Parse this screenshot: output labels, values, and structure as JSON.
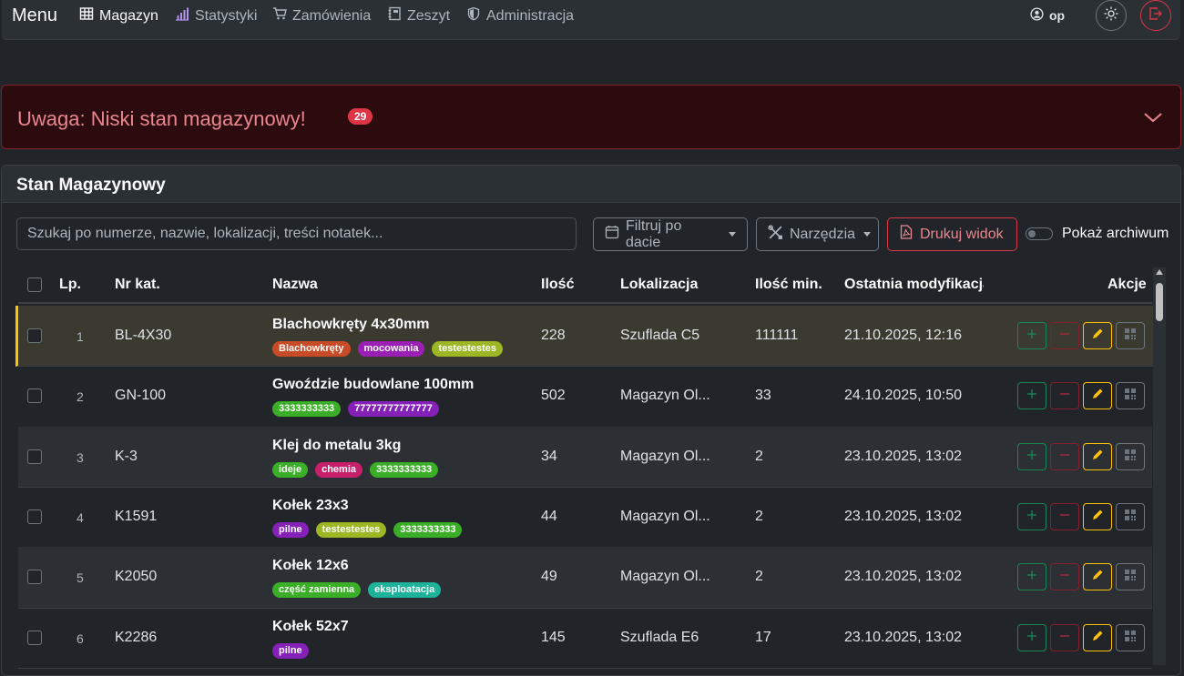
{
  "nav": {
    "brand": "Menu",
    "items": [
      {
        "label": "Magazyn",
        "icon": "table-icon"
      },
      {
        "label": "Statystyki",
        "icon": "bar-chart-icon"
      },
      {
        "label": "Zamówienia",
        "icon": "cart-icon"
      },
      {
        "label": "Zeszyt",
        "icon": "notebook-icon"
      },
      {
        "label": "Administracja",
        "icon": "shield-icon"
      }
    ],
    "user": "op"
  },
  "alert": {
    "title": "Uwaga: Niski stan magazynowy!",
    "badge": "29"
  },
  "card": {
    "title": "Stan Magazynowy"
  },
  "toolbar": {
    "search_placeholder": "Szukaj po numerze, nazwie, lokalizacji, treści notatek...",
    "filter_label": "Filtruj po dacie",
    "tools_label": "Narzędzia",
    "print_label": "Drukuj widok",
    "archive_label": "Pokaż archiwum"
  },
  "table": {
    "headers": {
      "lp": "Lp.",
      "nr": "Nr kat.",
      "name": "Nazwa",
      "qty": "Ilość",
      "loc": "Lokalizacja",
      "min": "Ilość min.",
      "mod": "Ostatnia modyfikacja",
      "actions": "Akcje"
    },
    "rows": [
      {
        "lp": "1",
        "nr": "BL-4X30",
        "name": "Blachowkręty 4x30mm",
        "qty": "228",
        "loc": "Szuflada C5",
        "min": "111111",
        "mod": "21.10.2025, 12:16",
        "tags": [
          {
            "t": "Blachowkręty",
            "c": "#c64b26"
          },
          {
            "t": "mocowania",
            "c": "#9b1fb5"
          },
          {
            "t": "testestestes",
            "c": "#9cb624"
          }
        ]
      },
      {
        "lp": "2",
        "nr": "GN-100",
        "name": "Gwoździe budowlane 100mm",
        "qty": "502",
        "loc": "Magazyn Ol...",
        "min": "33",
        "mod": "24.10.2025, 10:50",
        "tags": [
          {
            "t": "3333333333",
            "c": "#3bae27"
          },
          {
            "t": "77777777777777",
            "c": "#8520b8"
          }
        ]
      },
      {
        "lp": "3",
        "nr": "K-3",
        "name": "Klej do metalu 3kg",
        "qty": "34",
        "loc": "Magazyn Ol...",
        "min": "2",
        "mod": "23.10.2025, 13:02",
        "tags": [
          {
            "t": "ideje",
            "c": "#3bae27"
          },
          {
            "t": "chemia",
            "c": "#c81f6b"
          },
          {
            "t": "3333333333",
            "c": "#3bae27"
          }
        ]
      },
      {
        "lp": "4",
        "nr": "K1591",
        "name": "Kołek 23x3",
        "qty": "44",
        "loc": "Magazyn Ol...",
        "min": "2",
        "mod": "23.10.2025, 13:02",
        "tags": [
          {
            "t": "pilne",
            "c": "#8520b8"
          },
          {
            "t": "testestestes",
            "c": "#9cb624"
          },
          {
            "t": "3333333333",
            "c": "#3bae27"
          }
        ]
      },
      {
        "lp": "5",
        "nr": "K2050",
        "name": "Kołek 12x6",
        "qty": "49",
        "loc": "Magazyn Ol...",
        "min": "2",
        "mod": "23.10.2025, 13:02",
        "tags": [
          {
            "t": "część zamienna",
            "c": "#3bae27"
          },
          {
            "t": "eksploatacja",
            "c": "#1db39b"
          }
        ]
      },
      {
        "lp": "6",
        "nr": "K2286",
        "name": "Kołek 52x7",
        "qty": "145",
        "loc": "Szuflada E6",
        "min": "17",
        "mod": "23.10.2025, 13:02",
        "tags": [
          {
            "t": "pilne",
            "c": "#8520b8"
          }
        ]
      }
    ]
  }
}
